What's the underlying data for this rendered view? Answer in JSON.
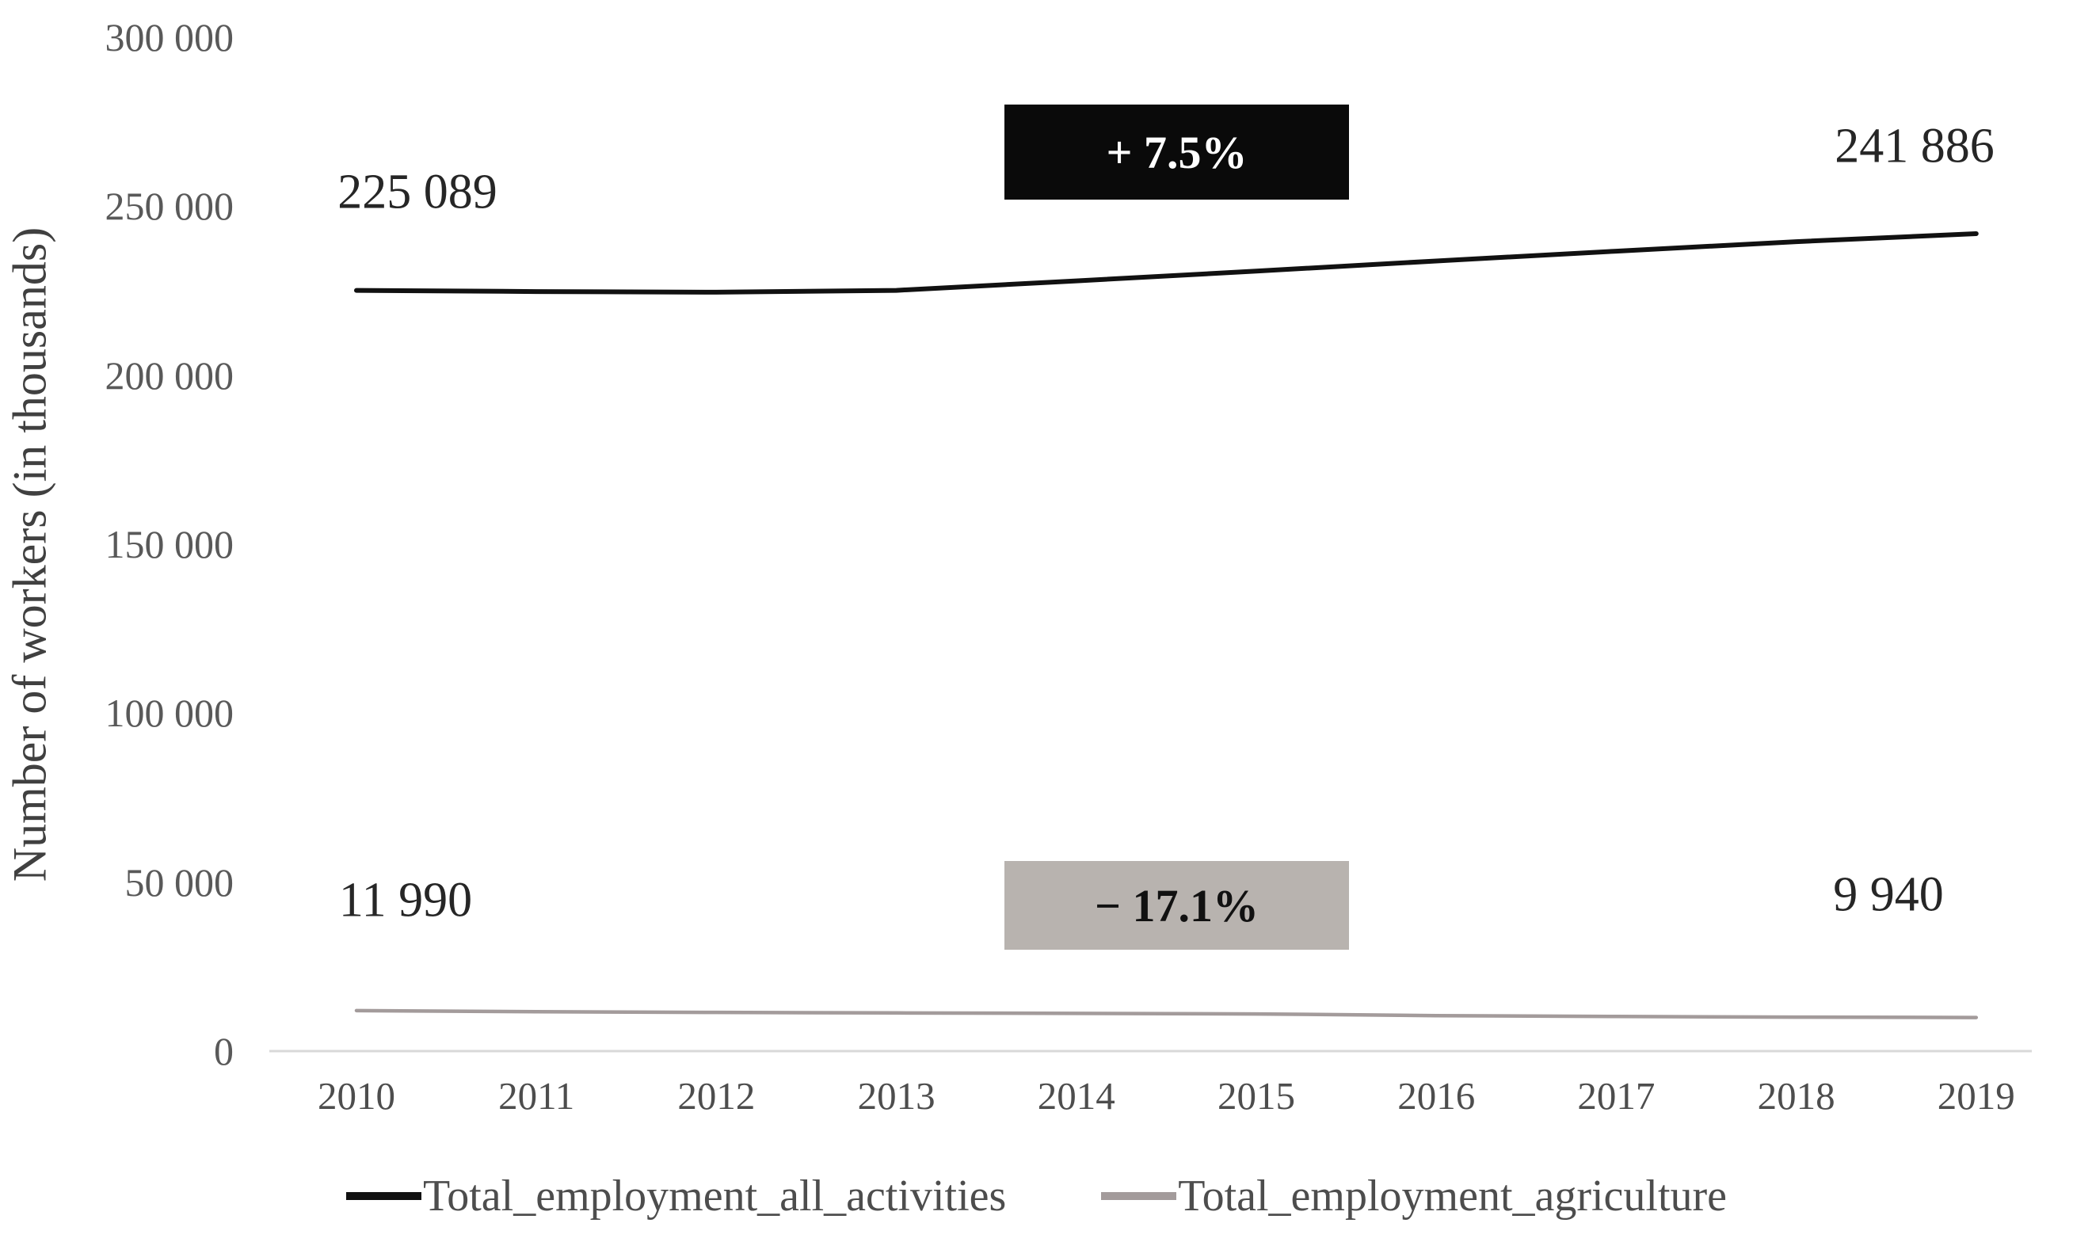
{
  "chart_data": {
    "type": "line",
    "title": "",
    "grid": false,
    "legend_position": "bottom",
    "y_axis": {
      "label": "Number of workers (in thousands)",
      "ylim": [
        0,
        300000
      ],
      "ticks": [
        {
          "value": 300000,
          "label": "300 000"
        },
        {
          "value": 250000,
          "label": "250 000"
        },
        {
          "value": 200000,
          "label": "200 000"
        },
        {
          "value": 150000,
          "label": "150 000"
        },
        {
          "value": 100000,
          "label": "100 000"
        },
        {
          "value": 50000,
          "label": "50 000"
        },
        {
          "value": 0,
          "label": "0"
        }
      ]
    },
    "x_axis": {
      "labels": [
        "2010",
        "2011",
        "2012",
        "2013",
        "2014",
        "2015",
        "2016",
        "2017",
        "2018",
        "2019"
      ]
    },
    "series": [
      {
        "name": "Total_employment_all_activities",
        "color": "#111111",
        "values": [
          225089,
          224750,
          224550,
          225100,
          227900,
          230800,
          233800,
          236700,
          239500,
          241886
        ],
        "first_label": "225 089",
        "last_label": "241 886"
      },
      {
        "name": "Total_employment_agriculture",
        "color": "#a39b9b",
        "values": [
          11990,
          11650,
          11450,
          11300,
          11150,
          11000,
          10500,
          10250,
          10050,
          9940
        ],
        "first_label": "11 990",
        "last_label": "9 940"
      }
    ],
    "annotations": [
      {
        "text": "+ 7.5%",
        "bg": "#0a0a0a",
        "fg": "#ffffff"
      },
      {
        "text": "− 17.1%",
        "bg": "#b8b3af",
        "fg": "#111111"
      }
    ],
    "axis_line_color": "#d9d9d9"
  }
}
